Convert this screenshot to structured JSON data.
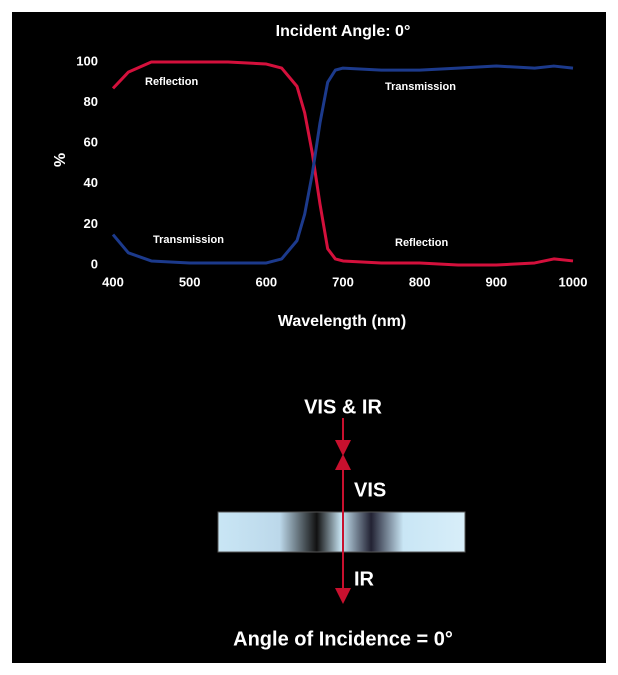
{
  "chart_data": {
    "type": "line",
    "title": "Incident Angle: 0°",
    "x_label": "Wavelength (nm)",
    "y_label": "%",
    "x": [
      400,
      420,
      450,
      500,
      550,
      600,
      620,
      640,
      650,
      660,
      670,
      680,
      690,
      700,
      750,
      800,
      850,
      900,
      950,
      975,
      1000
    ],
    "series": [
      {
        "name": "Reflection",
        "color": "#d4103c",
        "values": [
          87,
          95,
          100,
          100,
          100,
          99,
          97,
          88,
          75,
          55,
          30,
          8,
          3,
          2,
          1,
          1,
          0,
          0,
          1,
          3,
          2
        ]
      },
      {
        "name": "Transmission",
        "color": "#1c3a8c",
        "values": [
          15,
          6,
          2,
          1,
          1,
          1,
          3,
          12,
          25,
          45,
          70,
          90,
          96,
          97,
          96,
          96,
          97,
          98,
          97,
          98,
          97
        ]
      }
    ],
    "annotations": [
      "Transmission",
      "Reflection"
    ],
    "xlim": [
      400,
      1000
    ],
    "xticks": [
      400,
      500,
      600,
      700,
      800,
      900,
      1000
    ],
    "ylim": [
      0,
      100
    ],
    "yticks": [
      0,
      20,
      40,
      60,
      80,
      100
    ],
    "grid": false
  },
  "diagram": {
    "incident": "VIS & IR",
    "reflected": "VIS",
    "transmitted": "IR",
    "caption": "Angle of Incidence = 0°"
  }
}
